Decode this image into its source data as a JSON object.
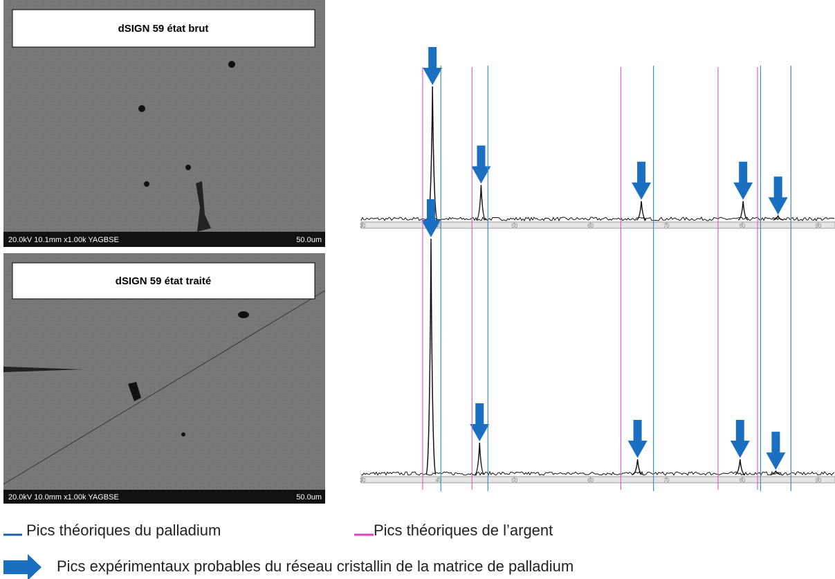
{
  "micrographs": [
    {
      "title": "dSIGN 59 état brut",
      "info": "20.0kV 10.1mm x1.00k YAGBSE",
      "scale": "50.0um"
    },
    {
      "title": "dSIGN 59 état traité",
      "info": "20.0kV 10.0mm x1.00k YAGBSE",
      "scale": "50.0um"
    }
  ],
  "diffractograms": {
    "xlim": [
      29.8,
      92.2
    ],
    "xticks": [
      30,
      40,
      50,
      60,
      70,
      80,
      90
    ],
    "palladium_lines": [
      40.3,
      46.5,
      68.3,
      82.4,
      86.4
    ],
    "silver_lines": [
      37.9,
      44.4,
      64.0,
      76.8,
      82.0
    ],
    "patterns": [
      {
        "peaks": [
          {
            "x": 39.2,
            "height": 100
          },
          {
            "x": 45.6,
            "height": 27
          },
          {
            "x": 66.7,
            "height": 15
          },
          {
            "x": 80.1,
            "height": 15
          },
          {
            "x": 84.7,
            "height": 4
          }
        ]
      },
      {
        "peaks": [
          {
            "x": 39.0,
            "height": 100
          },
          {
            "x": 45.4,
            "height": 14
          },
          {
            "x": 66.2,
            "height": 7
          },
          {
            "x": 79.7,
            "height": 7
          },
          {
            "x": 84.4,
            "height": 2
          }
        ]
      }
    ]
  },
  "legend": {
    "palladium": "Pics théoriques du palladium",
    "silver": "Pics théoriques de l’argent",
    "arrow": "Pics expérimentaux probables du réseau cristallin de la matrice de palladium"
  }
}
